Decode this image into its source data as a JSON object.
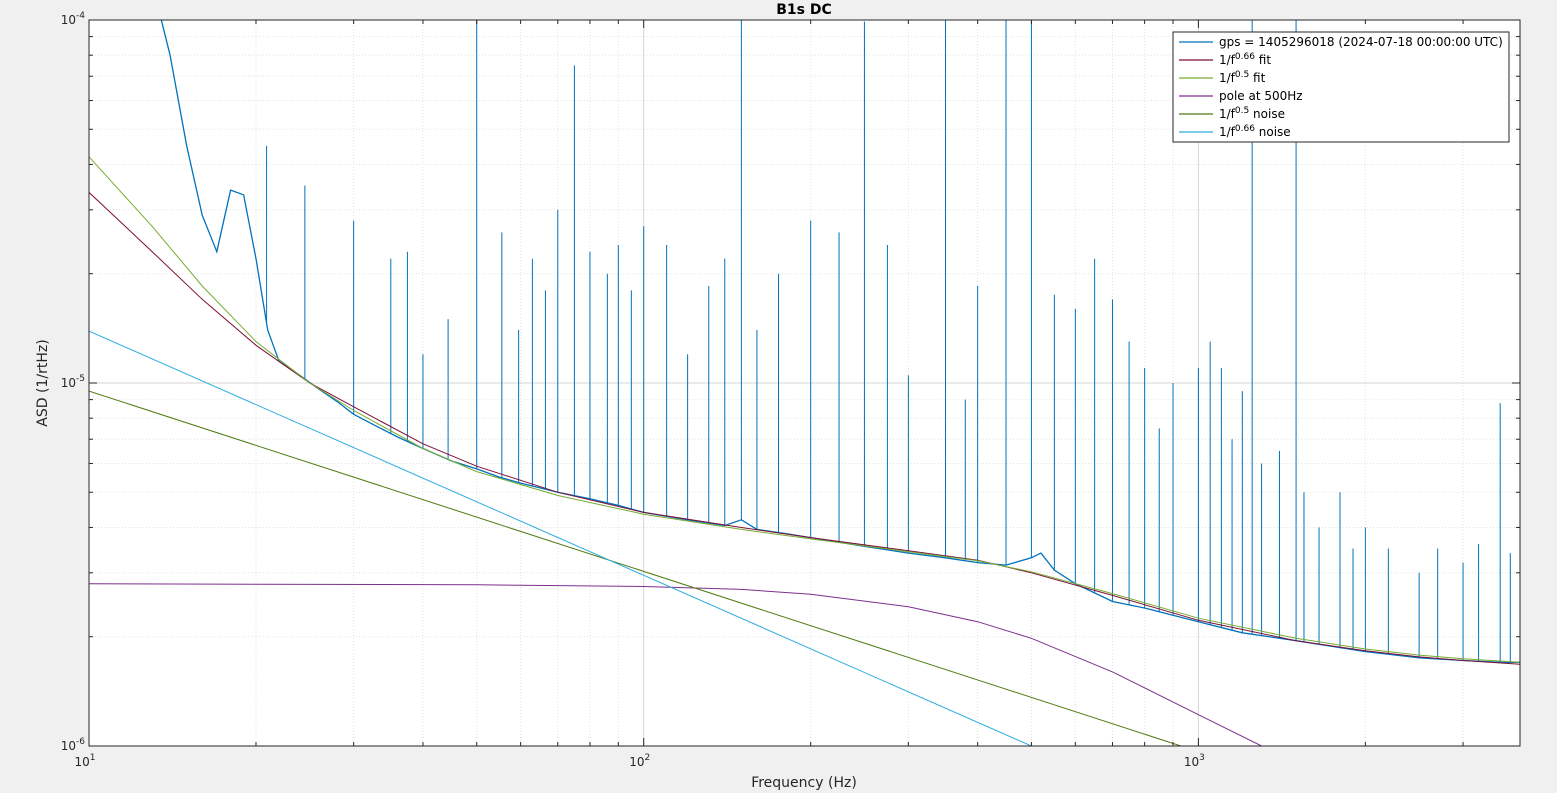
{
  "chart_data": {
    "type": "line",
    "title": "B1s DC",
    "xlabel": "Frequency (Hz)",
    "ylabel": "ASD (1/rtHz)",
    "xscale": "log",
    "yscale": "log",
    "xlim": [
      10,
      3800
    ],
    "ylim": [
      1e-06,
      0.0001
    ],
    "grid": true,
    "legend_position": "top-right",
    "x_ticks": [
      {
        "value": 10,
        "base": "10",
        "exp": "1"
      },
      {
        "value": 100,
        "base": "10",
        "exp": "2"
      },
      {
        "value": 1000,
        "base": "10",
        "exp": "3"
      }
    ],
    "y_ticks": [
      {
        "value": 1e-06,
        "base": "10",
        "exp": "-6"
      },
      {
        "value": 1e-05,
        "base": "10",
        "exp": "-5"
      },
      {
        "value": 0.0001,
        "base": "10",
        "exp": "-4"
      }
    ],
    "series": [
      {
        "name": "gps = 1405296018 (2024-07-18 00:00:00 UTC)",
        "label_base": "gps = 1405296018 (2024-07-18 00:00:00 UTC)",
        "label_sup": "",
        "label_tail": "",
        "color": "#0072BD",
        "x": [
          13.5,
          14,
          15,
          16,
          17,
          18,
          19,
          20,
          21,
          22,
          24,
          26,
          28,
          30,
          33,
          36,
          40,
          45,
          50,
          55,
          60,
          70,
          80,
          90,
          100,
          120,
          140,
          150,
          160,
          180,
          200,
          250,
          300,
          350,
          400,
          450,
          500,
          520,
          550,
          600,
          700,
          800,
          1000,
          1200,
          1500,
          2000,
          2500,
          3000,
          3500,
          3800
        ],
        "y": [
          0.0001,
          8e-05,
          4.5e-05,
          2.9e-05,
          2.3e-05,
          3.4e-05,
          3.3e-05,
          2.2e-05,
          1.4e-05,
          1.15e-05,
          1.05e-05,
          9.6e-06,
          8.9e-06,
          8.2e-06,
          7.6e-06,
          7.1e-06,
          6.6e-06,
          6.1e-06,
          5.8e-06,
          5.5e-06,
          5.3e-06,
          5e-06,
          4.8e-06,
          4.6e-06,
          4.4e-06,
          4.2e-06,
          4.05e-06,
          4.2e-06,
          3.95e-06,
          3.85e-06,
          3.75e-06,
          3.55e-06,
          3.4e-06,
          3.3e-06,
          3.2e-06,
          3.15e-06,
          3.3e-06,
          3.4e-06,
          3.05e-06,
          2.8e-06,
          2.5e-06,
          2.4e-06,
          2.2e-06,
          2.05e-06,
          1.95e-06,
          1.82e-06,
          1.75e-06,
          1.72e-06,
          1.7e-06,
          1.7e-06
        ],
        "peaks": [
          {
            "x": 20.9,
            "y": 4.5e-05
          },
          {
            "x": 24.5,
            "y": 3.5e-05
          },
          {
            "x": 30,
            "y": 2.8e-05
          },
          {
            "x": 35,
            "y": 2.2e-05
          },
          {
            "x": 37.5,
            "y": 2.3e-05
          },
          {
            "x": 40,
            "y": 1.2e-05
          },
          {
            "x": 44.4,
            "y": 1.5e-05
          },
          {
            "x": 50,
            "y": 0.0001
          },
          {
            "x": 55.5,
            "y": 2.6e-05
          },
          {
            "x": 59.5,
            "y": 1.4e-05
          },
          {
            "x": 63,
            "y": 2.2e-05
          },
          {
            "x": 66.5,
            "y": 1.8e-05
          },
          {
            "x": 70,
            "y": 3e-05
          },
          {
            "x": 75,
            "y": 7.5e-05
          },
          {
            "x": 80,
            "y": 2.3e-05
          },
          {
            "x": 86,
            "y": 2e-05
          },
          {
            "x": 90,
            "y": 2.4e-05
          },
          {
            "x": 95,
            "y": 1.8e-05
          },
          {
            "x": 100,
            "y": 2.7e-05
          },
          {
            "x": 110,
            "y": 2.4e-05
          },
          {
            "x": 120,
            "y": 1.2e-05
          },
          {
            "x": 131,
            "y": 1.85e-05
          },
          {
            "x": 140,
            "y": 2.2e-05
          },
          {
            "x": 150,
            "y": 0.0001
          },
          {
            "x": 160,
            "y": 1.4e-05
          },
          {
            "x": 175,
            "y": 2e-05
          },
          {
            "x": 200,
            "y": 2.8e-05
          },
          {
            "x": 225,
            "y": 2.6e-05
          },
          {
            "x": 250,
            "y": 9.9e-05
          },
          {
            "x": 275,
            "y": 2.4e-05
          },
          {
            "x": 300,
            "y": 1.05e-05
          },
          {
            "x": 350,
            "y": 0.0001
          },
          {
            "x": 380,
            "y": 9e-06
          },
          {
            "x": 400,
            "y": 1.85e-05
          },
          {
            "x": 450,
            "y": 0.0001
          },
          {
            "x": 500,
            "y": 0.0001
          },
          {
            "x": 550,
            "y": 1.75e-05
          },
          {
            "x": 600,
            "y": 1.6e-05
          },
          {
            "x": 650,
            "y": 2.2e-05
          },
          {
            "x": 700,
            "y": 1.7e-05
          },
          {
            "x": 750,
            "y": 1.3e-05
          },
          {
            "x": 800,
            "y": 1.1e-05
          },
          {
            "x": 850,
            "y": 7.5e-06
          },
          {
            "x": 900,
            "y": 1e-05
          },
          {
            "x": 1000,
            "y": 1.1e-05
          },
          {
            "x": 1050,
            "y": 1.3e-05
          },
          {
            "x": 1100,
            "y": 1.1e-05
          },
          {
            "x": 1150,
            "y": 7e-06
          },
          {
            "x": 1200,
            "y": 9.5e-06
          },
          {
            "x": 1250,
            "y": 0.0001
          },
          {
            "x": 1300,
            "y": 6e-06
          },
          {
            "x": 1400,
            "y": 6.5e-06
          },
          {
            "x": 1500,
            "y": 0.0001
          },
          {
            "x": 1550,
            "y": 5e-06
          },
          {
            "x": 1650,
            "y": 4e-06
          },
          {
            "x": 1800,
            "y": 5e-06
          },
          {
            "x": 1900,
            "y": 3.5e-06
          },
          {
            "x": 2000,
            "y": 4e-06
          },
          {
            "x": 2200,
            "y": 3.5e-06
          },
          {
            "x": 2500,
            "y": 3e-06
          },
          {
            "x": 2700,
            "y": 3.5e-06
          },
          {
            "x": 3000,
            "y": 3.2e-06
          },
          {
            "x": 3200,
            "y": 3.6e-06
          },
          {
            "x": 3500,
            "y": 8.8e-06
          },
          {
            "x": 3650,
            "y": 3.4e-06
          },
          {
            "x": 3800,
            "y": 3.1e-06
          }
        ]
      },
      {
        "name": "1/f^0.66 fit",
        "label_base": "1/f",
        "label_sup": "0.66",
        "label_tail": " fit",
        "color": "#7E0F37",
        "x": [
          10,
          13,
          16,
          20,
          25,
          30,
          40,
          50,
          70,
          100,
          150,
          200,
          300,
          400,
          500,
          700,
          1000,
          1500,
          2000,
          2500,
          3000,
          3800
        ],
        "y": [
          3.35e-05,
          2.3e-05,
          1.7e-05,
          1.27e-05,
          1e-05,
          8.6e-06,
          6.8e-06,
          5.9e-06,
          5e-06,
          4.4e-06,
          4e-06,
          3.75e-06,
          3.45e-06,
          3.25e-06,
          3e-06,
          2.6e-06,
          2.22e-06,
          1.95e-06,
          1.83e-06,
          1.76e-06,
          1.72e-06,
          1.68e-06
        ]
      },
      {
        "name": "1/f^0.5 fit",
        "label_base": "1/f",
        "label_sup": "0.5",
        "label_tail": " fit",
        "color": "#77AC30",
        "x": [
          10,
          13,
          16,
          20,
          25,
          30,
          40,
          50,
          70,
          100,
          150,
          200,
          300,
          400,
          500,
          700,
          1000,
          1500,
          2000,
          2500,
          3000,
          3800
        ],
        "y": [
          4.2e-05,
          2.7e-05,
          1.85e-05,
          1.3e-05,
          1e-05,
          8.4e-06,
          6.6e-06,
          5.7e-06,
          4.9e-06,
          4.35e-06,
          3.95e-06,
          3.72e-06,
          3.43e-06,
          3.24e-06,
          3.02e-06,
          2.63e-06,
          2.25e-06,
          1.98e-06,
          1.85e-06,
          1.78e-06,
          1.74e-06,
          1.7e-06
        ]
      },
      {
        "name": "pole at 500Hz",
        "label_base": "pole at 500Hz",
        "label_sup": "",
        "label_tail": "",
        "color": "#7E2F8E",
        "x": [
          10,
          20,
          50,
          100,
          150,
          200,
          300,
          400,
          500,
          700,
          1000,
          1300
        ],
        "y": [
          2.8e-06,
          2.79e-06,
          2.78e-06,
          2.75e-06,
          2.7e-06,
          2.62e-06,
          2.42e-06,
          2.2e-06,
          1.98e-06,
          1.6e-06,
          1.22e-06,
          1e-06
        ]
      },
      {
        "name": "1/f^0.5 noise",
        "label_base": "1/f",
        "label_sup": "0.5",
        "label_tail": " noise",
        "color": "#4E7A10",
        "x": [
          10,
          930
        ],
        "y": [
          9.5e-06,
          1e-06
        ]
      },
      {
        "name": "1/f^0.66 noise",
        "label_base": "1/f",
        "label_sup": "0.66",
        "label_tail": " noise",
        "color": "#2EADE0",
        "x": [
          10,
          500
        ],
        "y": [
          1.39e-05,
          1e-06
        ]
      }
    ]
  }
}
